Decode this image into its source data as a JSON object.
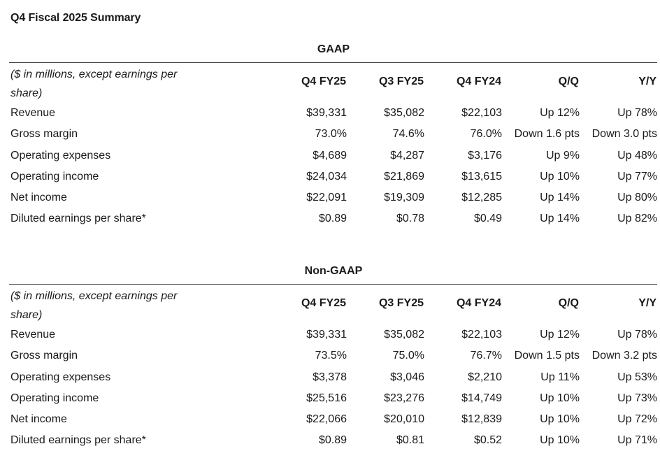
{
  "page": {
    "title": "Q4 Fiscal 2025 Summary"
  },
  "tables": [
    {
      "section_title": "GAAP",
      "note": "($ in millions, except earnings per share)",
      "headers": [
        "Q4 FY25",
        "Q3 FY25",
        "Q4 FY24",
        "Q/Q",
        "Y/Y"
      ],
      "rows": [
        {
          "label": "Revenue",
          "values": [
            "$39,331",
            "$35,082",
            "$22,103",
            "Up 12%",
            "Up 78%"
          ]
        },
        {
          "label": "Gross margin",
          "values": [
            "73.0%",
            "74.6%",
            "76.0%",
            "Down 1.6 pts",
            "Down 3.0 pts"
          ]
        },
        {
          "label": "Operating expenses",
          "values": [
            "$4,689",
            "$4,287",
            "$3,176",
            "Up 9%",
            "Up 48%"
          ]
        },
        {
          "label": "Operating income",
          "values": [
            "$24,034",
            "$21,869",
            "$13,615",
            "Up 10%",
            "Up 77%"
          ]
        },
        {
          "label": "Net income",
          "values": [
            "$22,091",
            "$19,309",
            "$12,285",
            "Up 14%",
            "Up 80%"
          ]
        },
        {
          "label": "Diluted earnings per share*",
          "values": [
            "$0.89",
            "$0.78",
            "$0.49",
            "Up 14%",
            "Up 82%"
          ]
        }
      ]
    },
    {
      "section_title": "Non-GAAP",
      "note": "($ in millions, except earnings per share)",
      "headers": [
        "Q4 FY25",
        "Q3 FY25",
        "Q4 FY24",
        "Q/Q",
        "Y/Y"
      ],
      "rows": [
        {
          "label": "Revenue",
          "values": [
            "$39,331",
            "$35,082",
            "$22,103",
            "Up 12%",
            "Up 78%"
          ]
        },
        {
          "label": "Gross margin",
          "values": [
            "73.5%",
            "75.0%",
            "76.7%",
            "Down 1.5 pts",
            "Down 3.2 pts"
          ]
        },
        {
          "label": "Operating expenses",
          "values": [
            "$3,378",
            "$3,046",
            "$2,210",
            "Up 11%",
            "Up 53%"
          ]
        },
        {
          "label": "Operating income",
          "values": [
            "$25,516",
            "$23,276",
            "$14,749",
            "Up 10%",
            "Up 73%"
          ]
        },
        {
          "label": "Net income",
          "values": [
            "$22,066",
            "$20,010",
            "$12,839",
            "Up 10%",
            "Up 72%"
          ]
        },
        {
          "label": "Diluted earnings per share*",
          "values": [
            "$0.89",
            "$0.81",
            "$0.52",
            "Up 10%",
            "Up 71%"
          ]
        }
      ]
    }
  ]
}
